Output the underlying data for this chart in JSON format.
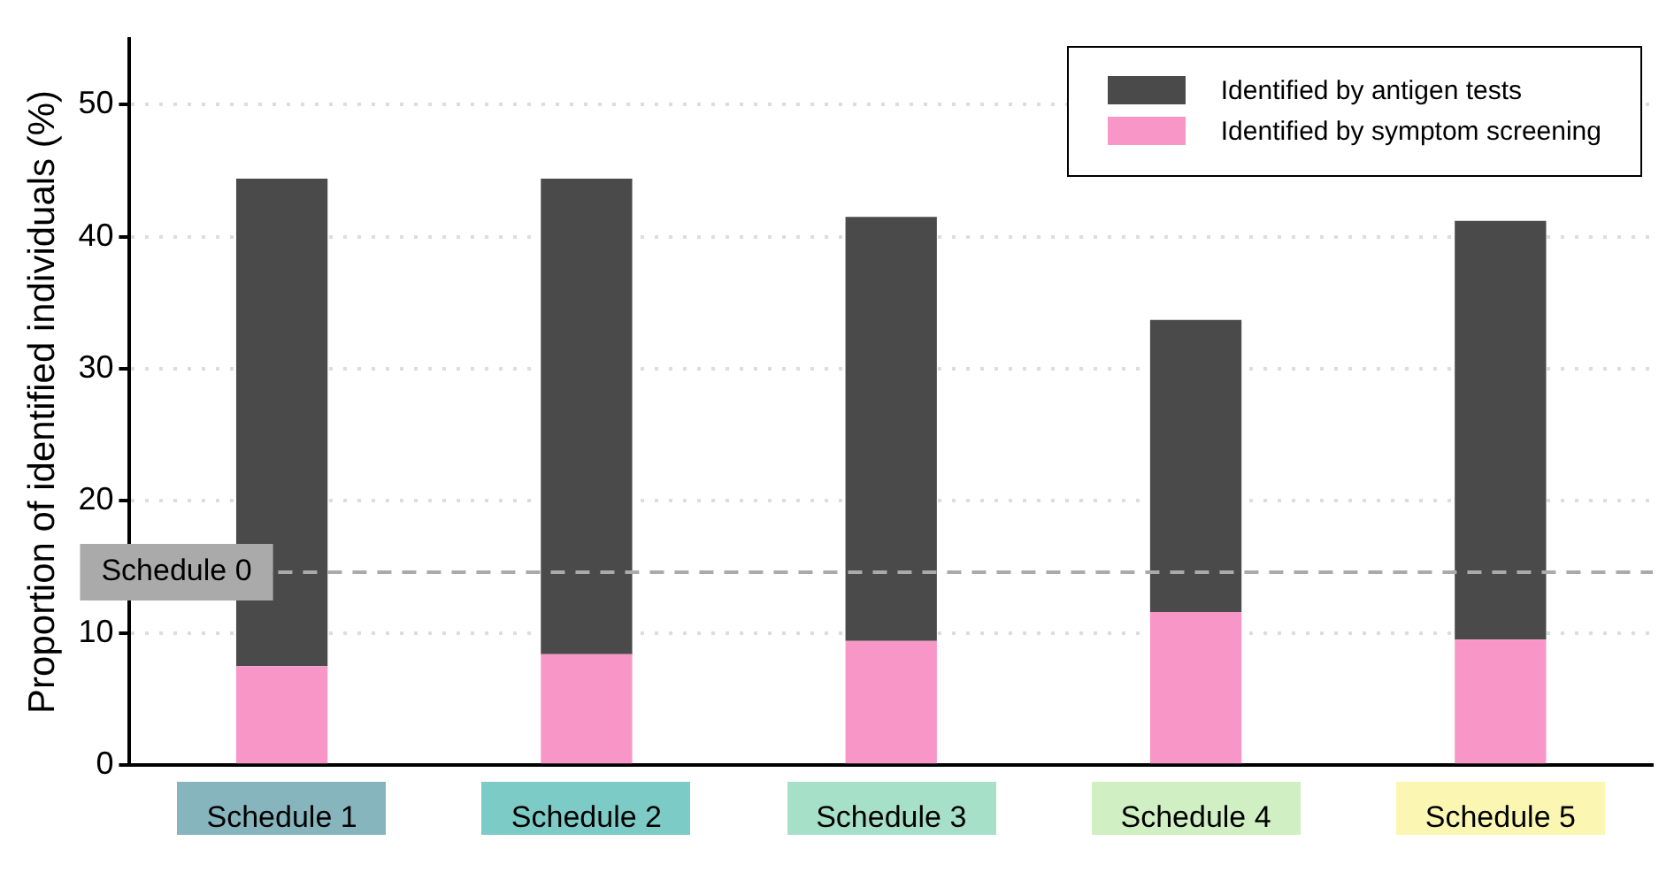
{
  "chart_data": {
    "type": "bar",
    "stacked": true,
    "ylabel": "Proportion of identified individuals (%)",
    "categories": [
      "Schedule 1",
      "Schedule 2",
      "Schedule 3",
      "Schedule 4",
      "Schedule 5"
    ],
    "series": [
      {
        "name": "Identified by symptom screening",
        "color": "#f996c8",
        "values": [
          7.5,
          8.4,
          9.4,
          11.6,
          9.5
        ]
      },
      {
        "name": "Identified by antigen tests",
        "color": "#4a4a4a",
        "values": [
          36.9,
          36.0,
          32.1,
          22.1,
          31.7
        ]
      }
    ],
    "ylim": [
      0,
      55
    ],
    "yticks": [
      0,
      10,
      20,
      30,
      40,
      50
    ],
    "grid": "y",
    "legend": "top right",
    "ref_lines": [
      {
        "axis": "y",
        "value": 14.6,
        "label": "Schedule 0",
        "color": "#aaaaaa",
        "line_style": "dashed"
      }
    ]
  }
}
